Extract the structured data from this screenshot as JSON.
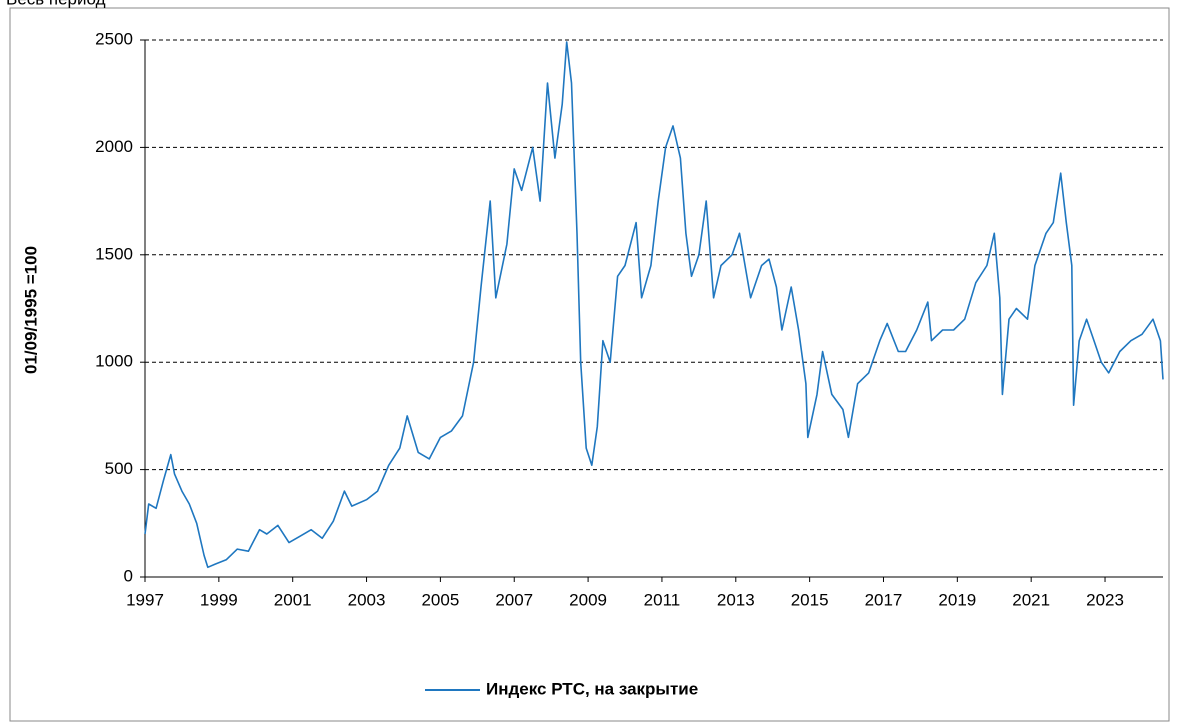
{
  "chart_data": {
    "type": "line",
    "title": "Весь период",
    "ylabel": "01/09/1995 =100",
    "xlim": [
      1997,
      2024.57
    ],
    "xticks": [
      1997,
      1999,
      2001,
      2003,
      2005,
      2007,
      2009,
      2011,
      2013,
      2015,
      2017,
      2019,
      2021,
      2023
    ],
    "ylim": [
      0,
      2500
    ],
    "yticks": [
      0,
      500,
      1000,
      1500,
      2000,
      2500
    ],
    "grid": true,
    "legend": "bottom",
    "x": [
      1997.0,
      1997.1,
      1997.3,
      1997.5,
      1997.7,
      1997.8,
      1998.0,
      1998.2,
      1998.4,
      1998.6,
      1998.7,
      1998.9,
      1999.2,
      1999.5,
      1999.8,
      2000.1,
      2000.3,
      2000.6,
      2000.9,
      2001.2,
      2001.5,
      2001.8,
      2002.1,
      2002.4,
      2002.6,
      2003.0,
      2003.3,
      2003.6,
      2003.9,
      2004.1,
      2004.4,
      2004.7,
      2005.0,
      2005.3,
      2005.6,
      2005.9,
      2006.1,
      2006.35,
      2006.5,
      2006.8,
      2007.0,
      2007.2,
      2007.5,
      2007.7,
      2007.9,
      2008.1,
      2008.3,
      2008.42,
      2008.55,
      2008.7,
      2008.8,
      2008.95,
      2009.1,
      2009.25,
      2009.4,
      2009.6,
      2009.8,
      2010.0,
      2010.3,
      2010.45,
      2010.7,
      2010.9,
      2011.1,
      2011.3,
      2011.5,
      2011.65,
      2011.8,
      2012.0,
      2012.2,
      2012.4,
      2012.6,
      2012.9,
      2013.1,
      2013.4,
      2013.7,
      2013.9,
      2014.1,
      2014.25,
      2014.5,
      2014.7,
      2014.9,
      2014.95,
      2015.2,
      2015.35,
      2015.6,
      2015.9,
      2016.05,
      2016.3,
      2016.6,
      2016.9,
      2017.1,
      2017.4,
      2017.6,
      2017.9,
      2018.2,
      2018.3,
      2018.6,
      2018.9,
      2019.2,
      2019.5,
      2019.8,
      2020.0,
      2020.15,
      2020.22,
      2020.4,
      2020.6,
      2020.9,
      2021.1,
      2021.4,
      2021.6,
      2021.8,
      2021.95,
      2022.1,
      2022.15,
      2022.3,
      2022.5,
      2022.7,
      2022.9,
      2023.1,
      2023.4,
      2023.7,
      2024.0,
      2024.3,
      2024.5,
      2024.57
    ],
    "series": [
      {
        "name": "Индекс РТС, на закрытие",
        "color": "#1f77c0",
        "values": [
          200,
          340,
          320,
          450,
          570,
          480,
          400,
          340,
          250,
          100,
          45,
          60,
          80,
          130,
          120,
          220,
          200,
          240,
          160,
          190,
          220,
          180,
          260,
          400,
          330,
          360,
          400,
          520,
          600,
          750,
          580,
          550,
          650,
          680,
          750,
          1000,
          1350,
          1750,
          1300,
          1550,
          1900,
          1800,
          2000,
          1750,
          2300,
          1950,
          2200,
          2490,
          2300,
          1600,
          1000,
          600,
          520,
          700,
          1100,
          1000,
          1400,
          1450,
          1650,
          1300,
          1450,
          1750,
          2000,
          2100,
          1950,
          1600,
          1400,
          1500,
          1750,
          1300,
          1450,
          1500,
          1600,
          1300,
          1450,
          1480,
          1350,
          1150,
          1350,
          1150,
          900,
          650,
          850,
          1050,
          850,
          780,
          650,
          900,
          950,
          1100,
          1180,
          1050,
          1050,
          1150,
          1280,
          1100,
          1150,
          1150,
          1200,
          1370,
          1450,
          1600,
          1300,
          850,
          1200,
          1250,
          1200,
          1450,
          1600,
          1650,
          1880,
          1650,
          1450,
          800,
          1100,
          1200,
          1100,
          1000,
          950,
          1050,
          1100,
          1130,
          1200,
          1100,
          920
        ]
      }
    ]
  }
}
